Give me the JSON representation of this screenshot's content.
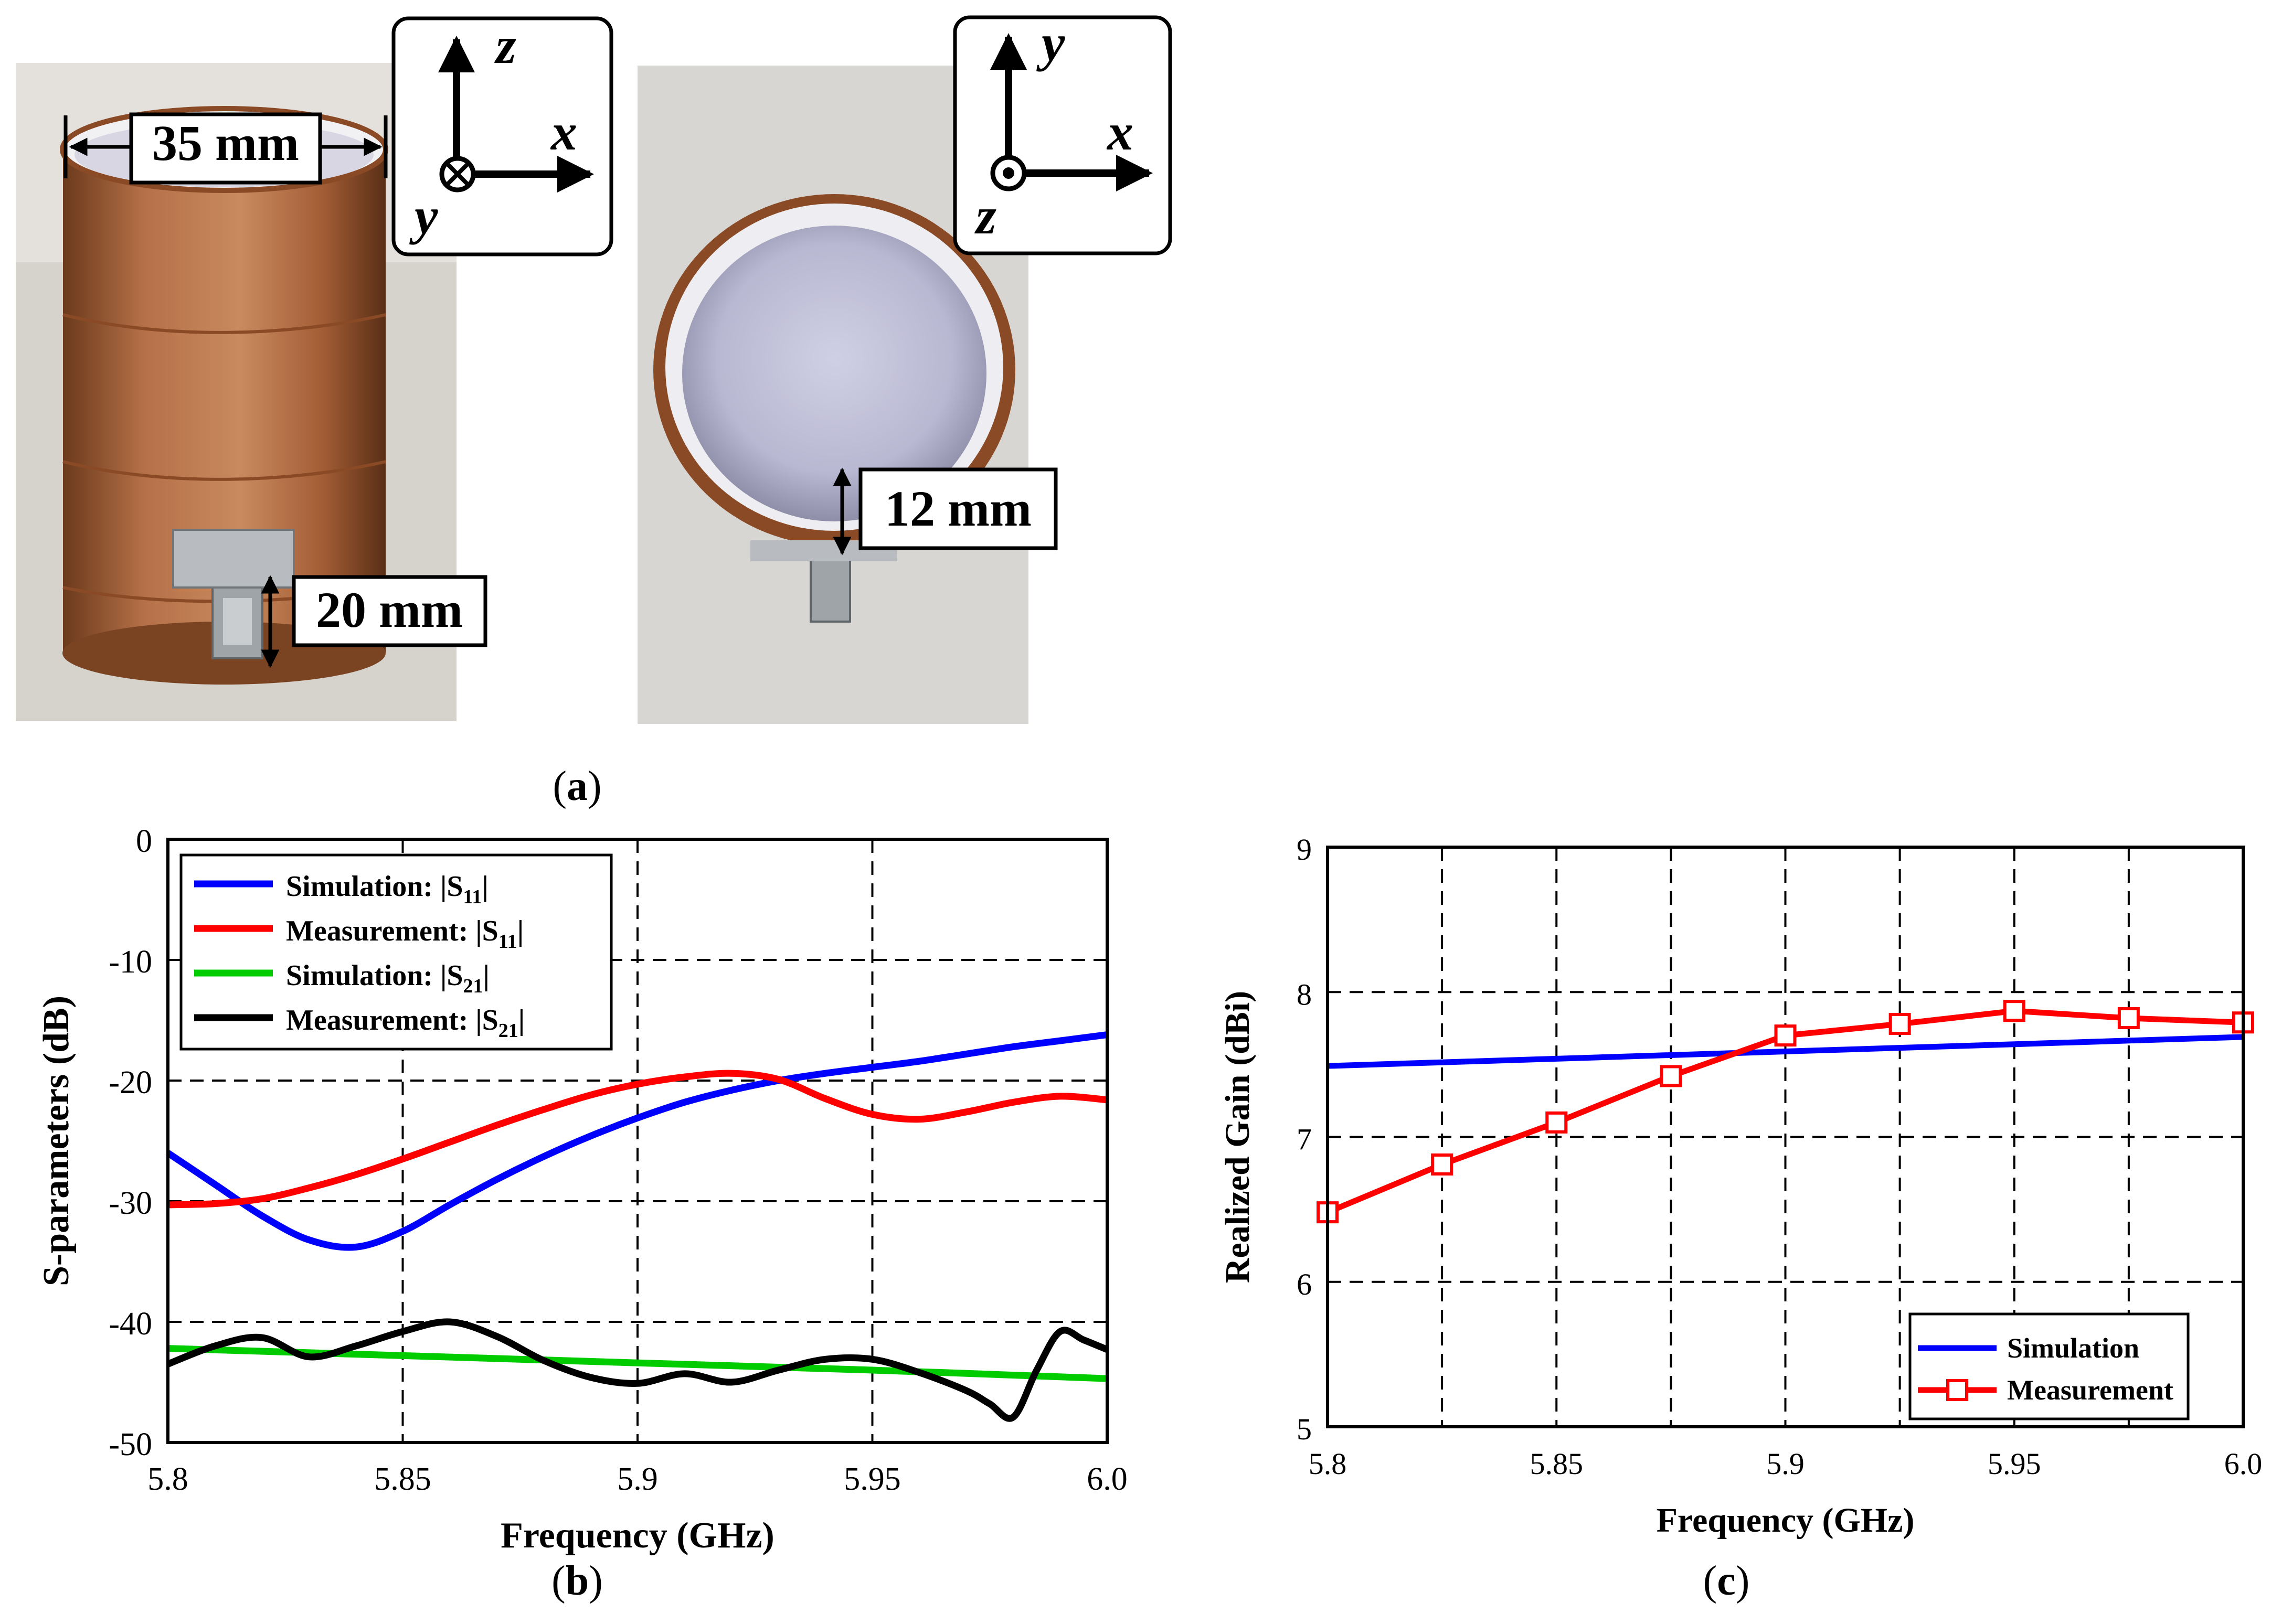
{
  "panel_a": {
    "caption": "a",
    "photo1": {
      "diameter_label": "35 mm",
      "feed_label": "20 mm",
      "axes": {
        "up": "z",
        "right": "x",
        "into": "y"
      }
    },
    "photo2": {
      "gap_label": "12 mm",
      "axes": {
        "up": "y",
        "right": "x",
        "out": "z"
      }
    }
  },
  "panel_b": {
    "caption": "b"
  },
  "panel_c": {
    "caption": "c"
  },
  "colors": {
    "blue": "#0000ff",
    "red": "#ff0000",
    "green": "#00cc00",
    "black": "#000000",
    "copper": "#b06a3e"
  },
  "chart_data": [
    {
      "id": "b",
      "type": "line",
      "title": "",
      "xlabel": "Frequency (GHz)",
      "ylabel": "S-parameters (dB)",
      "xlim": [
        5.8,
        6.0
      ],
      "ylim": [
        -50,
        0
      ],
      "xticks": [
        5.8,
        5.85,
        5.9,
        5.95,
        6.0
      ],
      "xtick_labels": [
        "5.8",
        "5.85",
        "5.9",
        "5.95",
        "6.0"
      ],
      "yticks": [
        -50,
        -40,
        -30,
        -20,
        -10,
        0
      ],
      "ytick_labels": [
        "-50",
        "-40",
        "-30",
        "-20",
        "-10",
        "0"
      ],
      "grid": true,
      "legend_position": "top-left",
      "series": [
        {
          "name": "Simulation: |S11|",
          "label_main": "Simulation: |S",
          "label_sub": "11",
          "label_end": "|",
          "color": "#0000ff",
          "x": [
            5.8,
            5.81,
            5.82,
            5.83,
            5.84,
            5.85,
            5.86,
            5.87,
            5.88,
            5.89,
            5.9,
            5.91,
            5.92,
            5.93,
            5.94,
            5.95,
            5.96,
            5.97,
            5.98,
            5.99,
            6.0
          ],
          "y": [
            -26,
            -28.6,
            -31.2,
            -33.2,
            -33.8,
            -32.5,
            -30.3,
            -28.2,
            -26.3,
            -24.6,
            -23.1,
            -21.8,
            -20.8,
            -20.0,
            -19.4,
            -18.9,
            -18.4,
            -17.8,
            -17.2,
            -16.7,
            -16.2
          ]
        },
        {
          "name": "Measurement: |S11|",
          "label_main": "Measurement: |S",
          "label_sub": "11",
          "label_end": "|",
          "color": "#ff0000",
          "x": [
            5.8,
            5.81,
            5.82,
            5.83,
            5.84,
            5.85,
            5.86,
            5.87,
            5.88,
            5.89,
            5.9,
            5.91,
            5.92,
            5.93,
            5.94,
            5.95,
            5.96,
            5.97,
            5.98,
            5.99,
            6.0
          ],
          "y": [
            -30.3,
            -30.2,
            -29.8,
            -28.9,
            -27.8,
            -26.5,
            -25.1,
            -23.7,
            -22.4,
            -21.2,
            -20.3,
            -19.7,
            -19.4,
            -19.9,
            -21.5,
            -22.8,
            -23.2,
            -22.6,
            -21.8,
            -21.3,
            -21.6
          ]
        },
        {
          "name": "Simulation: |S21|",
          "label_main": "Simulation: |S",
          "label_sub": "21",
          "label_end": "|",
          "color": "#00cc00",
          "x": [
            5.8,
            5.85,
            5.9,
            5.95,
            6.0
          ],
          "y": [
            -42.2,
            -42.8,
            -43.4,
            -44.0,
            -44.7
          ]
        },
        {
          "name": "Measurement: |S21|",
          "label_main": "Measurement: |S",
          "label_sub": "21",
          "label_end": "|",
          "color": "#000000",
          "x": [
            5.8,
            5.81,
            5.82,
            5.83,
            5.84,
            5.85,
            5.86,
            5.87,
            5.88,
            5.89,
            5.9,
            5.91,
            5.92,
            5.93,
            5.94,
            5.95,
            5.96,
            5.97,
            5.975,
            5.98,
            5.985,
            5.99,
            5.995,
            6.0
          ],
          "y": [
            -43.5,
            -42.0,
            -41.3,
            -42.9,
            -42.0,
            -40.8,
            -40.0,
            -41.2,
            -43.2,
            -44.6,
            -45.1,
            -44.3,
            -45.0,
            -44.0,
            -43.1,
            -43.1,
            -44.2,
            -45.7,
            -46.8,
            -47.9,
            -44.0,
            -40.8,
            -41.5,
            -42.3
          ]
        }
      ]
    },
    {
      "id": "c",
      "type": "line",
      "title": "",
      "xlabel": "Frequency (GHz)",
      "ylabel": "Realized Gain (dBi)",
      "xlim": [
        5.8,
        6.0
      ],
      "ylim": [
        5,
        9
      ],
      "xticks": [
        5.8,
        5.825,
        5.85,
        5.875,
        5.9,
        5.925,
        5.95,
        5.975,
        6.0
      ],
      "xtick_labels": [
        "5.8",
        "",
        "5.85",
        "",
        "5.9",
        "",
        "5.95",
        "",
        "6.0"
      ],
      "yticks": [
        5,
        6,
        7,
        8,
        9
      ],
      "ytick_labels": [
        "5",
        "6",
        "7",
        "8",
        "9"
      ],
      "grid": true,
      "legend_position": "bottom-right",
      "series": [
        {
          "name": "Simulation",
          "color": "#0000ff",
          "markers": false,
          "x": [
            5.8,
            5.85,
            5.9,
            5.95,
            6.0
          ],
          "y": [
            7.49,
            7.54,
            7.59,
            7.64,
            7.69
          ]
        },
        {
          "name": "Measurement",
          "color": "#ff0000",
          "markers": true,
          "x": [
            5.8,
            5.825,
            5.85,
            5.875,
            5.9,
            5.925,
            5.95,
            5.975,
            6.0
          ],
          "y": [
            6.48,
            6.81,
            7.1,
            7.42,
            7.7,
            7.78,
            7.87,
            7.82,
            7.79
          ]
        }
      ]
    }
  ]
}
